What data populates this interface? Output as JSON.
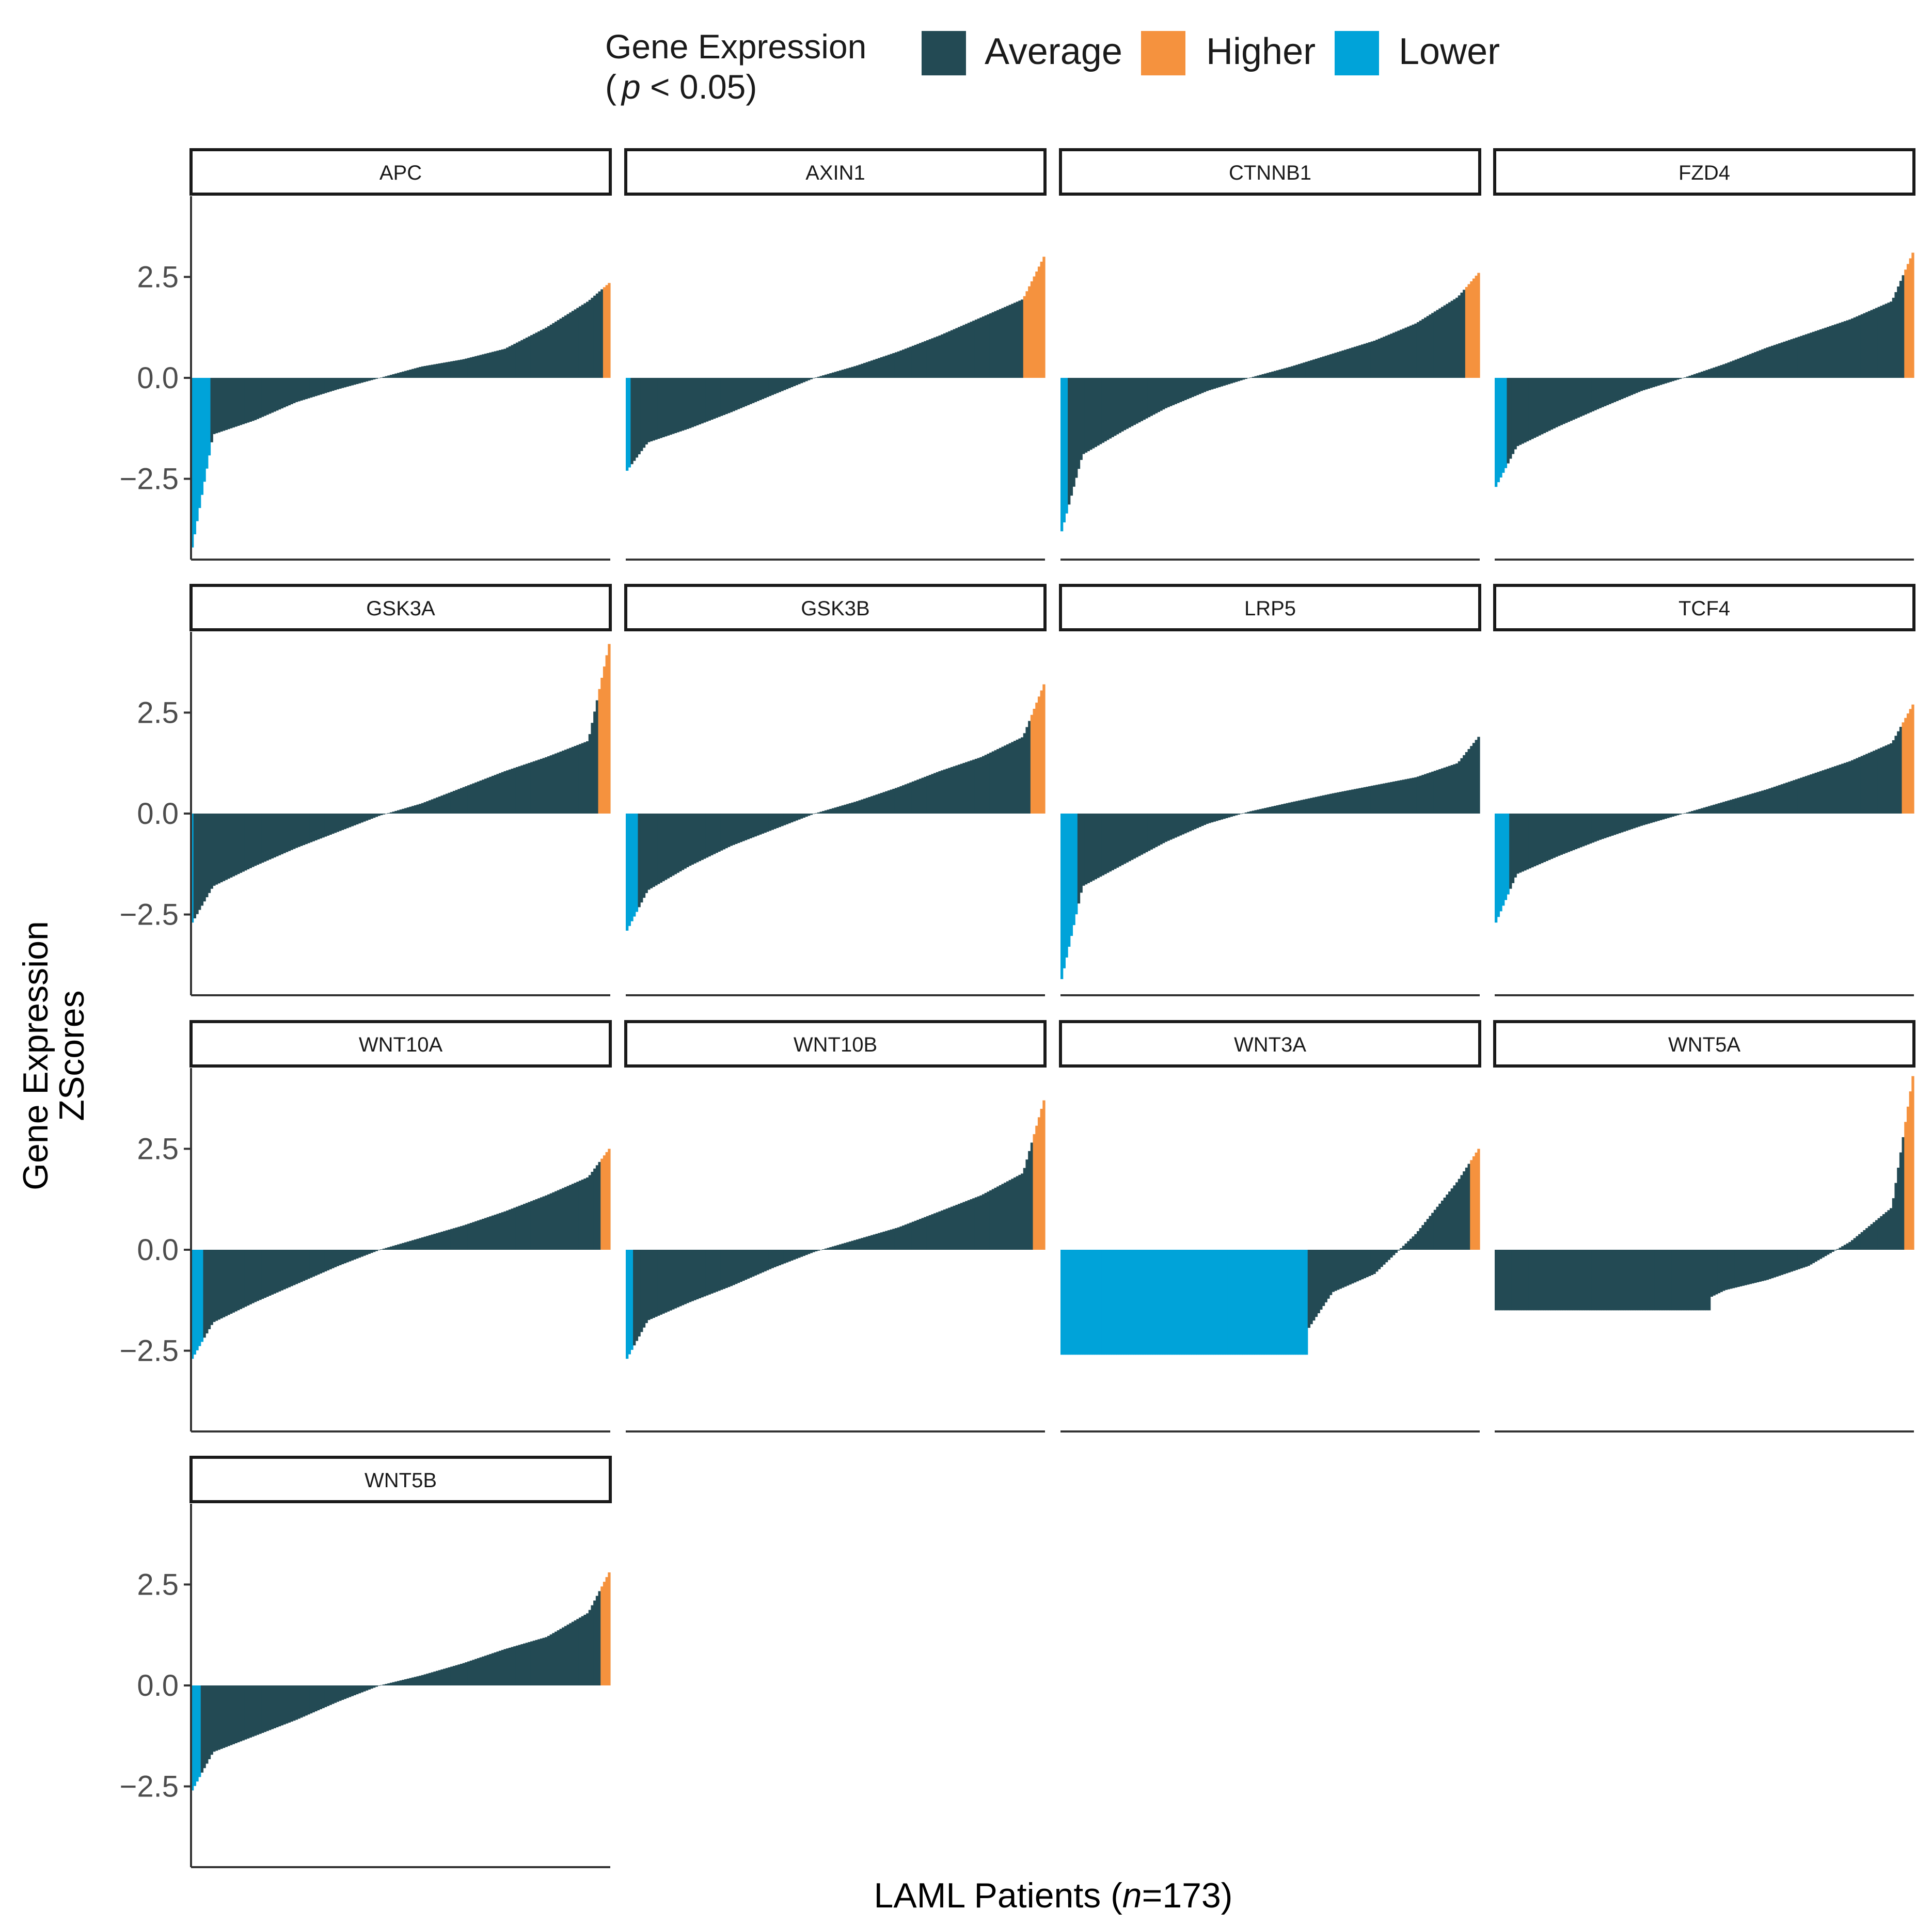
{
  "chart_data": {
    "type": "bar",
    "layout": "faceted waterfall",
    "xlabel": {
      "prefix": "LAML Patients (",
      "italic": "n",
      "suffix": "=173)"
    },
    "ylabel": [
      "Gene Expression",
      "ZScores"
    ],
    "ylim": [
      -4.5,
      4.5
    ],
    "y_ticks": [
      2.5,
      0,
      -2.5
    ],
    "y_tick_labels": [
      "2.5",
      "0.0",
      "−2.5"
    ],
    "legend": {
      "title_line1": "Gene Expression",
      "title_line2_italic": "p",
      "title_line2_rest": " < 0.05)",
      "title_line2_open": "(",
      "position": "top",
      "items": [
        {
          "key": "average",
          "label": "Average",
          "color": "#234a54"
        },
        {
          "key": "higher",
          "label": "Higher",
          "color": "#f5923e"
        },
        {
          "key": "lower",
          "label": "Lower",
          "color": "#00a3d9"
        }
      ]
    },
    "n_patients": 173,
    "panels": [
      {
        "gene": "APC",
        "min": -4.2,
        "max": 2.35,
        "curve": [
          -1.4,
          -1.05,
          -0.6,
          -0.28,
          0.0,
          0.28,
          0.46,
          0.72,
          1.25,
          1.9
        ],
        "lower": 8,
        "higher": 3,
        "plateaus": []
      },
      {
        "gene": "AXIN1",
        "min": -2.3,
        "max": 3.0,
        "curve": [
          -1.6,
          -1.25,
          -0.85,
          -0.42,
          0.0,
          0.3,
          0.65,
          1.05,
          1.5,
          1.95
        ],
        "lower": 2,
        "higher": 9,
        "plateaus": []
      },
      {
        "gene": "CTNNB1",
        "min": -3.8,
        "max": 2.6,
        "curve": [
          -1.9,
          -1.3,
          -0.75,
          -0.32,
          0.0,
          0.28,
          0.6,
          0.92,
          1.35,
          2.0
        ],
        "lower": 3,
        "higher": 6,
        "plateaus": []
      },
      {
        "gene": "FZD4",
        "min": -2.7,
        "max": 3.1,
        "curve": [
          -1.7,
          -1.2,
          -0.75,
          -0.32,
          0.0,
          0.35,
          0.75,
          1.1,
          1.45,
          1.9
        ],
        "lower": 5,
        "higher": 4,
        "plateaus": []
      },
      {
        "gene": "GSK3A",
        "min": -2.7,
        "max": 4.2,
        "curve": [
          -1.8,
          -1.3,
          -0.85,
          -0.45,
          -0.05,
          0.25,
          0.65,
          1.05,
          1.4,
          1.8
        ],
        "lower": 1,
        "higher": 5,
        "plateaus": []
      },
      {
        "gene": "GSK3B",
        "min": -2.9,
        "max": 3.2,
        "curve": [
          -1.9,
          -1.3,
          -0.8,
          -0.4,
          0.0,
          0.3,
          0.65,
          1.05,
          1.4,
          1.9
        ],
        "lower": 5,
        "higher": 6,
        "plateaus": []
      },
      {
        "gene": "LRP5",
        "min": -4.1,
        "max": 1.9,
        "curve": [
          -1.8,
          -1.25,
          -0.7,
          -0.25,
          0.05,
          0.28,
          0.5,
          0.7,
          0.9,
          1.25
        ],
        "lower": 7,
        "higher": 0,
        "plateaus": []
      },
      {
        "gene": "TCF4",
        "min": -2.7,
        "max": 2.7,
        "curve": [
          -1.5,
          -1.05,
          -0.65,
          -0.3,
          0.0,
          0.3,
          0.6,
          0.95,
          1.3,
          1.75
        ],
        "lower": 6,
        "higher": 5,
        "plateaus": []
      },
      {
        "gene": "WNT10A",
        "min": -2.7,
        "max": 2.5,
        "curve": [
          -1.8,
          -1.3,
          -0.85,
          -0.4,
          0.0,
          0.3,
          0.6,
          0.95,
          1.35,
          1.8
        ],
        "lower": 5,
        "higher": 4,
        "plateaus": []
      },
      {
        "gene": "WNT10B",
        "min": -2.7,
        "max": 3.7,
        "curve": [
          -1.75,
          -1.3,
          -0.9,
          -0.45,
          -0.05,
          0.25,
          0.55,
          0.95,
          1.35,
          1.9
        ],
        "lower": 3,
        "higher": 5,
        "plateaus": []
      },
      {
        "gene": "WNT3A",
        "min": -2.6,
        "max": 2.5,
        "curve": [
          -2.6,
          -2.6,
          -2.6,
          -2.6,
          -2.6,
          -2.6,
          -1.05,
          -0.6,
          0.4,
          1.7
        ],
        "lower": 102,
        "higher": 4,
        "plateaus": [
          {
            "from": 0,
            "to": 102,
            "value": -2.6,
            "category": "lower"
          }
        ]
      },
      {
        "gene": "WNT5A",
        "min": -1.5,
        "max": 4.3,
        "curve": [
          -1.5,
          -1.5,
          -1.5,
          -1.5,
          -1.5,
          -1.0,
          -0.75,
          -0.4,
          0.2,
          1.05
        ],
        "lower": 0,
        "higher": 4,
        "plateaus": [
          {
            "from": 0,
            "to": 89,
            "value": -1.5,
            "category": "average"
          }
        ]
      },
      {
        "gene": "WNT5B",
        "min": -2.6,
        "max": 2.8,
        "curve": [
          -1.65,
          -1.25,
          -0.85,
          -0.4,
          0.0,
          0.25,
          0.55,
          0.9,
          1.2,
          1.8
        ],
        "lower": 4,
        "higher": 4,
        "plateaus": []
      }
    ]
  }
}
